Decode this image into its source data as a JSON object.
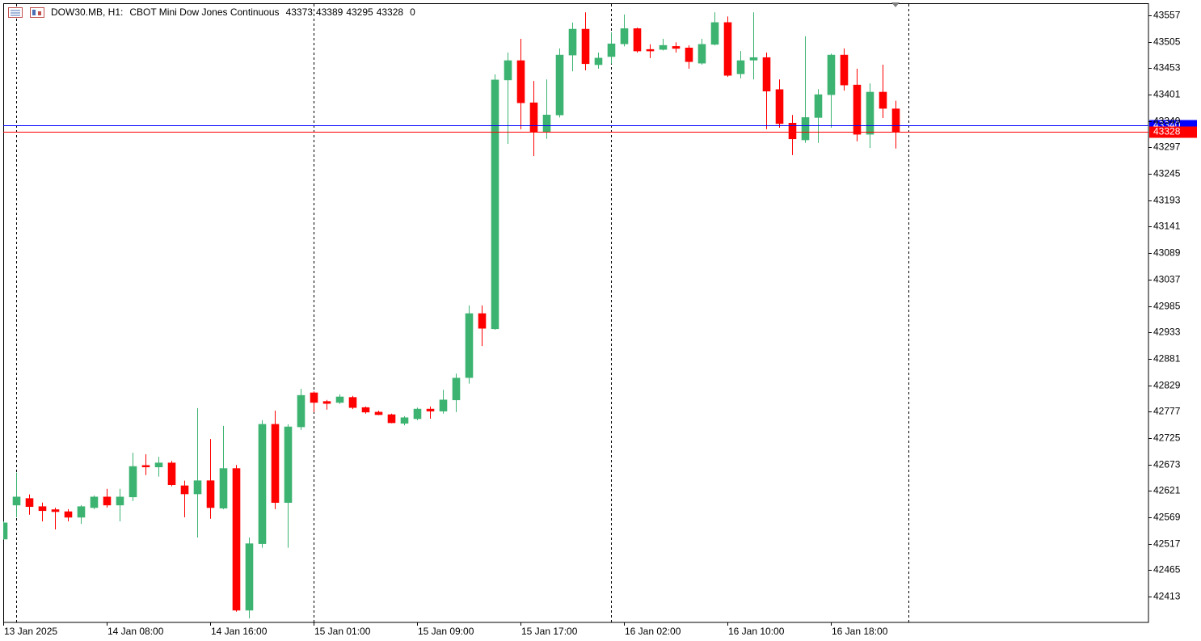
{
  "chart_data": {
    "type": "candlestick",
    "symbol": "DOW30.MB, H1:",
    "description": "CBOT Mini Dow Jones Continuous",
    "header_ohlc": [
      43373,
      43389,
      43295,
      43328
    ],
    "header_volume": 0,
    "categories": [
      "13 Jan 2025",
      null,
      null,
      null,
      null,
      null,
      null,
      null,
      "14 Jan 08:00",
      null,
      null,
      null,
      null,
      null,
      null,
      null,
      "14 Jan 16:00",
      null,
      null,
      null,
      null,
      null,
      null,
      null,
      "15 Jan 01:00",
      null,
      null,
      null,
      null,
      null,
      null,
      null,
      "15 Jan 09:00",
      null,
      null,
      null,
      null,
      null,
      null,
      null,
      "15 Jan 17:00",
      null,
      null,
      null,
      null,
      null,
      null,
      null,
      "16 Jan 02:00",
      null,
      null,
      null,
      null,
      null,
      null,
      null,
      "16 Jan 10:00",
      null,
      null,
      null,
      null,
      null,
      null,
      null,
      "16 Jan 18:00",
      null,
      null,
      null,
      null,
      null
    ],
    "open": [
      42526,
      42593,
      42606,
      42590,
      42584,
      42580,
      42569,
      42588,
      42609,
      42593,
      42609,
      42671,
      42668,
      42676,
      42631,
      42615,
      42641,
      42587,
      42665,
      42386,
      42517,
      42752,
      42598,
      42747,
      42814,
      42797,
      42795,
      42805,
      42785,
      42776,
      42771,
      42754,
      42763,
      42782,
      42778,
      42800,
      42844,
      42970,
      42940,
      43430,
      43468,
      43385,
      43328,
      43361,
      43479,
      43530,
      43460,
      43476,
      43501,
      43531,
      43490,
      43490,
      43496,
      43493,
      43463,
      43500,
      43543,
      43442,
      43469,
      43474,
      43411,
      43345,
      43312,
      43356,
      43401,
      43479,
      43420,
      43323,
      43406,
      43373
    ],
    "high": [
      42561,
      42657,
      42614,
      42598,
      42588,
      42585,
      42593,
      42612,
      42625,
      42625,
      42696,
      42693,
      42688,
      42680,
      42641,
      42784,
      42723,
      42749,
      42672,
      42529,
      42760,
      42779,
      42752,
      42822,
      42817,
      42800,
      42811,
      42808,
      42787,
      42779,
      42773,
      42768,
      42785,
      42787,
      42820,
      42852,
      42986,
      42986,
      43441,
      43484,
      43511,
      43428,
      43431,
      43492,
      43543,
      43563,
      43484,
      43524,
      43559,
      43533,
      43500,
      43511,
      43504,
      43498,
      43511,
      43563,
      43555,
      43487,
      43563,
      43484,
      43431,
      43361,
      43516,
      43412,
      43482,
      43492,
      43452,
      43423,
      43460,
      43389
    ],
    "low": [
      42525,
      42569,
      42574,
      42561,
      42545,
      42561,
      42556,
      42585,
      42588,
      42561,
      42601,
      42652,
      42649,
      42630,
      42569,
      42529,
      42566,
      42585,
      42383,
      42370,
      42509,
      42585,
      42509,
      42741,
      42776,
      42781,
      42792,
      42782,
      42773,
      42770,
      42754,
      42750,
      42760,
      42763,
      42773,
      42776,
      42832,
      42906,
      42938,
      43304,
      43333,
      43280,
      43314,
      43356,
      43447,
      43449,
      43452,
      43462,
      43496,
      43484,
      43473,
      43488,
      43484,
      43452,
      43460,
      43498,
      43436,
      43433,
      43431,
      43333,
      43336,
      43282,
      43306,
      43306,
      43336,
      43409,
      43309,
      43296,
      43355,
      43295
    ],
    "close": [
      42558,
      42609,
      42590,
      42582,
      42580,
      42569,
      42590,
      42609,
      42593,
      42609,
      42669,
      42668,
      42676,
      42633,
      42615,
      42641,
      42588,
      42665,
      42386,
      42517,
      42752,
      42598,
      42747,
      42809,
      42795,
      42793,
      42806,
      42785,
      42776,
      42771,
      42755,
      42765,
      42782,
      42778,
      42800,
      42843,
      42970,
      42941,
      43430,
      43468,
      43385,
      43328,
      43361,
      43479,
      43530,
      43462,
      43473,
      43501,
      43531,
      43487,
      43487,
      43498,
      43492,
      43466,
      43500,
      43543,
      43439,
      43468,
      43474,
      43408,
      43344,
      43314,
      43356,
      43401,
      43479,
      43420,
      43323,
      43406,
      43374,
      43328
    ],
    "up_color": "#3cb371",
    "down_color": "#ff0000",
    "bid": 43328,
    "bid_color": "#ff0000",
    "ask": 43340,
    "ask_color": "#0000ff",
    "ylim": [
      42362,
      43581
    ],
    "yticks": [
      42413,
      42465,
      42517,
      42569,
      42621,
      42673,
      42725,
      42777,
      42829,
      42881,
      42933,
      42985,
      43037,
      43089,
      43141,
      43193,
      43245,
      43297,
      43349,
      43401,
      43453,
      43505,
      43557
    ]
  }
}
